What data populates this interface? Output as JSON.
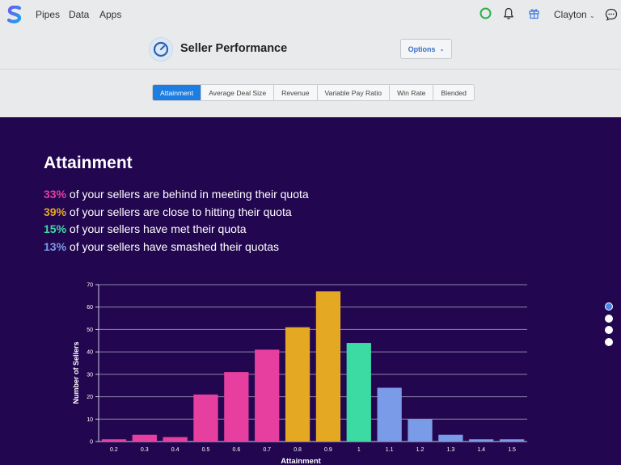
{
  "nav": {
    "links": [
      "Pipes",
      "Data",
      "Apps"
    ],
    "user": "Clayton",
    "icons": [
      "status-circle-icon",
      "bell-icon",
      "gift-icon",
      "chat-icon"
    ],
    "status_color": "#2bb24c"
  },
  "header": {
    "title": "Seller Performance",
    "options_label": "Options"
  },
  "tabs": [
    "Attainment",
    "Average Deal Size",
    "Revenue",
    "Variable Pay Ratio",
    "Win Rate",
    "Blended"
  ],
  "active_tab": "Attainment",
  "panel": {
    "title": "Attainment",
    "stats": [
      {
        "pct": "33%",
        "text": "of your sellers are behind in meeting their quota",
        "color": "#e63fa0"
      },
      {
        "pct": "39%",
        "text": "of your sellers are close to hitting their quota",
        "color": "#e5a823"
      },
      {
        "pct": "15%",
        "text": "of your sellers have met their quota",
        "color": "#3ddba4"
      },
      {
        "pct": "13%",
        "text": "of your sellers have smashed their quotas",
        "color": "#7a9be8"
      }
    ]
  },
  "chart_data": {
    "type": "bar",
    "categories": [
      "0.2",
      "0.3",
      "0.4",
      "0.5",
      "0.6",
      "0.7",
      "0.8",
      "0.9",
      "1",
      "1.1",
      "1.2",
      "1.3",
      "1.4",
      "1.5"
    ],
    "values": [
      1,
      3,
      2,
      21,
      31,
      41,
      51,
      67,
      44,
      24,
      10,
      3,
      1,
      1
    ],
    "bar_colors": [
      "#e63fa0",
      "#e63fa0",
      "#e63fa0",
      "#e63fa0",
      "#e63fa0",
      "#e63fa0",
      "#e5a823",
      "#e5a823",
      "#3ddba4",
      "#7a9be8",
      "#7a9be8",
      "#7a9be8",
      "#7a9be8",
      "#7a9be8"
    ],
    "xlabel": "Attainment",
    "ylabel": "Number of Sellers",
    "ylim": [
      0,
      70
    ],
    "yticks": [
      0,
      10,
      20,
      30,
      40,
      50,
      60,
      70
    ],
    "grid": true
  },
  "pager": {
    "count": 4,
    "active": 0
  }
}
